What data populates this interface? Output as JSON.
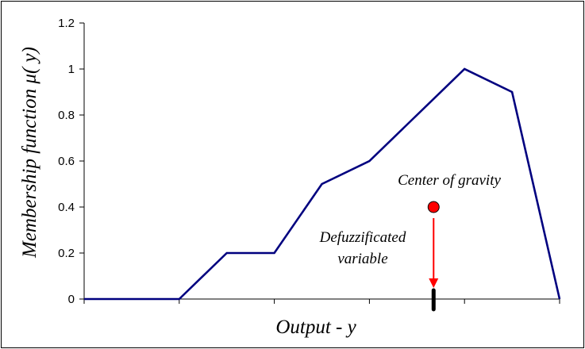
{
  "chart_data": {
    "type": "line",
    "xlabel": "Output - y",
    "ylabel": "Membership function μ( y)",
    "ylim": [
      0,
      1.2
    ],
    "y_ticks": [
      "0",
      "0.2",
      "0.4",
      "0.6",
      "0.8",
      "1",
      "1.2"
    ],
    "x_ticks_labeled": false,
    "grid": false,
    "series": [
      {
        "color": "#00007f",
        "points": [
          [
            0,
            0
          ],
          [
            2,
            0
          ],
          [
            3,
            0.2
          ],
          [
            4,
            0.2
          ],
          [
            5,
            0.5
          ],
          [
            6,
            0.6
          ],
          [
            8,
            1.0
          ],
          [
            9,
            0.9
          ],
          [
            10,
            0
          ]
        ]
      }
    ],
    "xlim": [
      0,
      10
    ],
    "center_of_gravity": {
      "x": 7.35,
      "y": 0.4,
      "label": "Center of gravity",
      "color": "#ff0000"
    },
    "defuzzified_variable": {
      "x": 7.35,
      "label_line1": "Defuzzificated",
      "label_line2": "variable"
    }
  }
}
